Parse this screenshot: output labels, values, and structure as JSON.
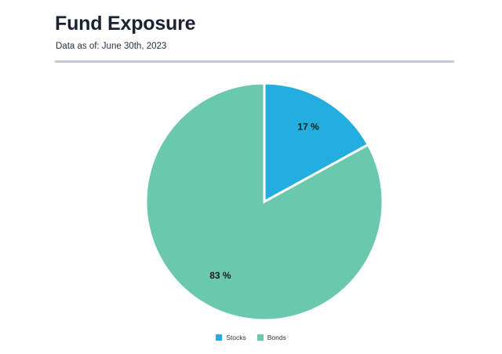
{
  "header": {
    "title": "Fund Exposure",
    "subtitle": "Data as of: June 30th, 2023"
  },
  "chart_data": {
    "type": "pie",
    "title": "Fund Exposure",
    "subtitle": "Data as of: June 30th, 2023",
    "series": [
      {
        "name": "Stocks",
        "value": 17,
        "label": "17 %",
        "color": "#24aee0"
      },
      {
        "name": "Bonds",
        "value": 83,
        "label": "83 %",
        "color": "#6ac8ad"
      }
    ],
    "legend_position": "bottom-center",
    "start_angle": "12 o'clock",
    "direction": "clockwise"
  }
}
